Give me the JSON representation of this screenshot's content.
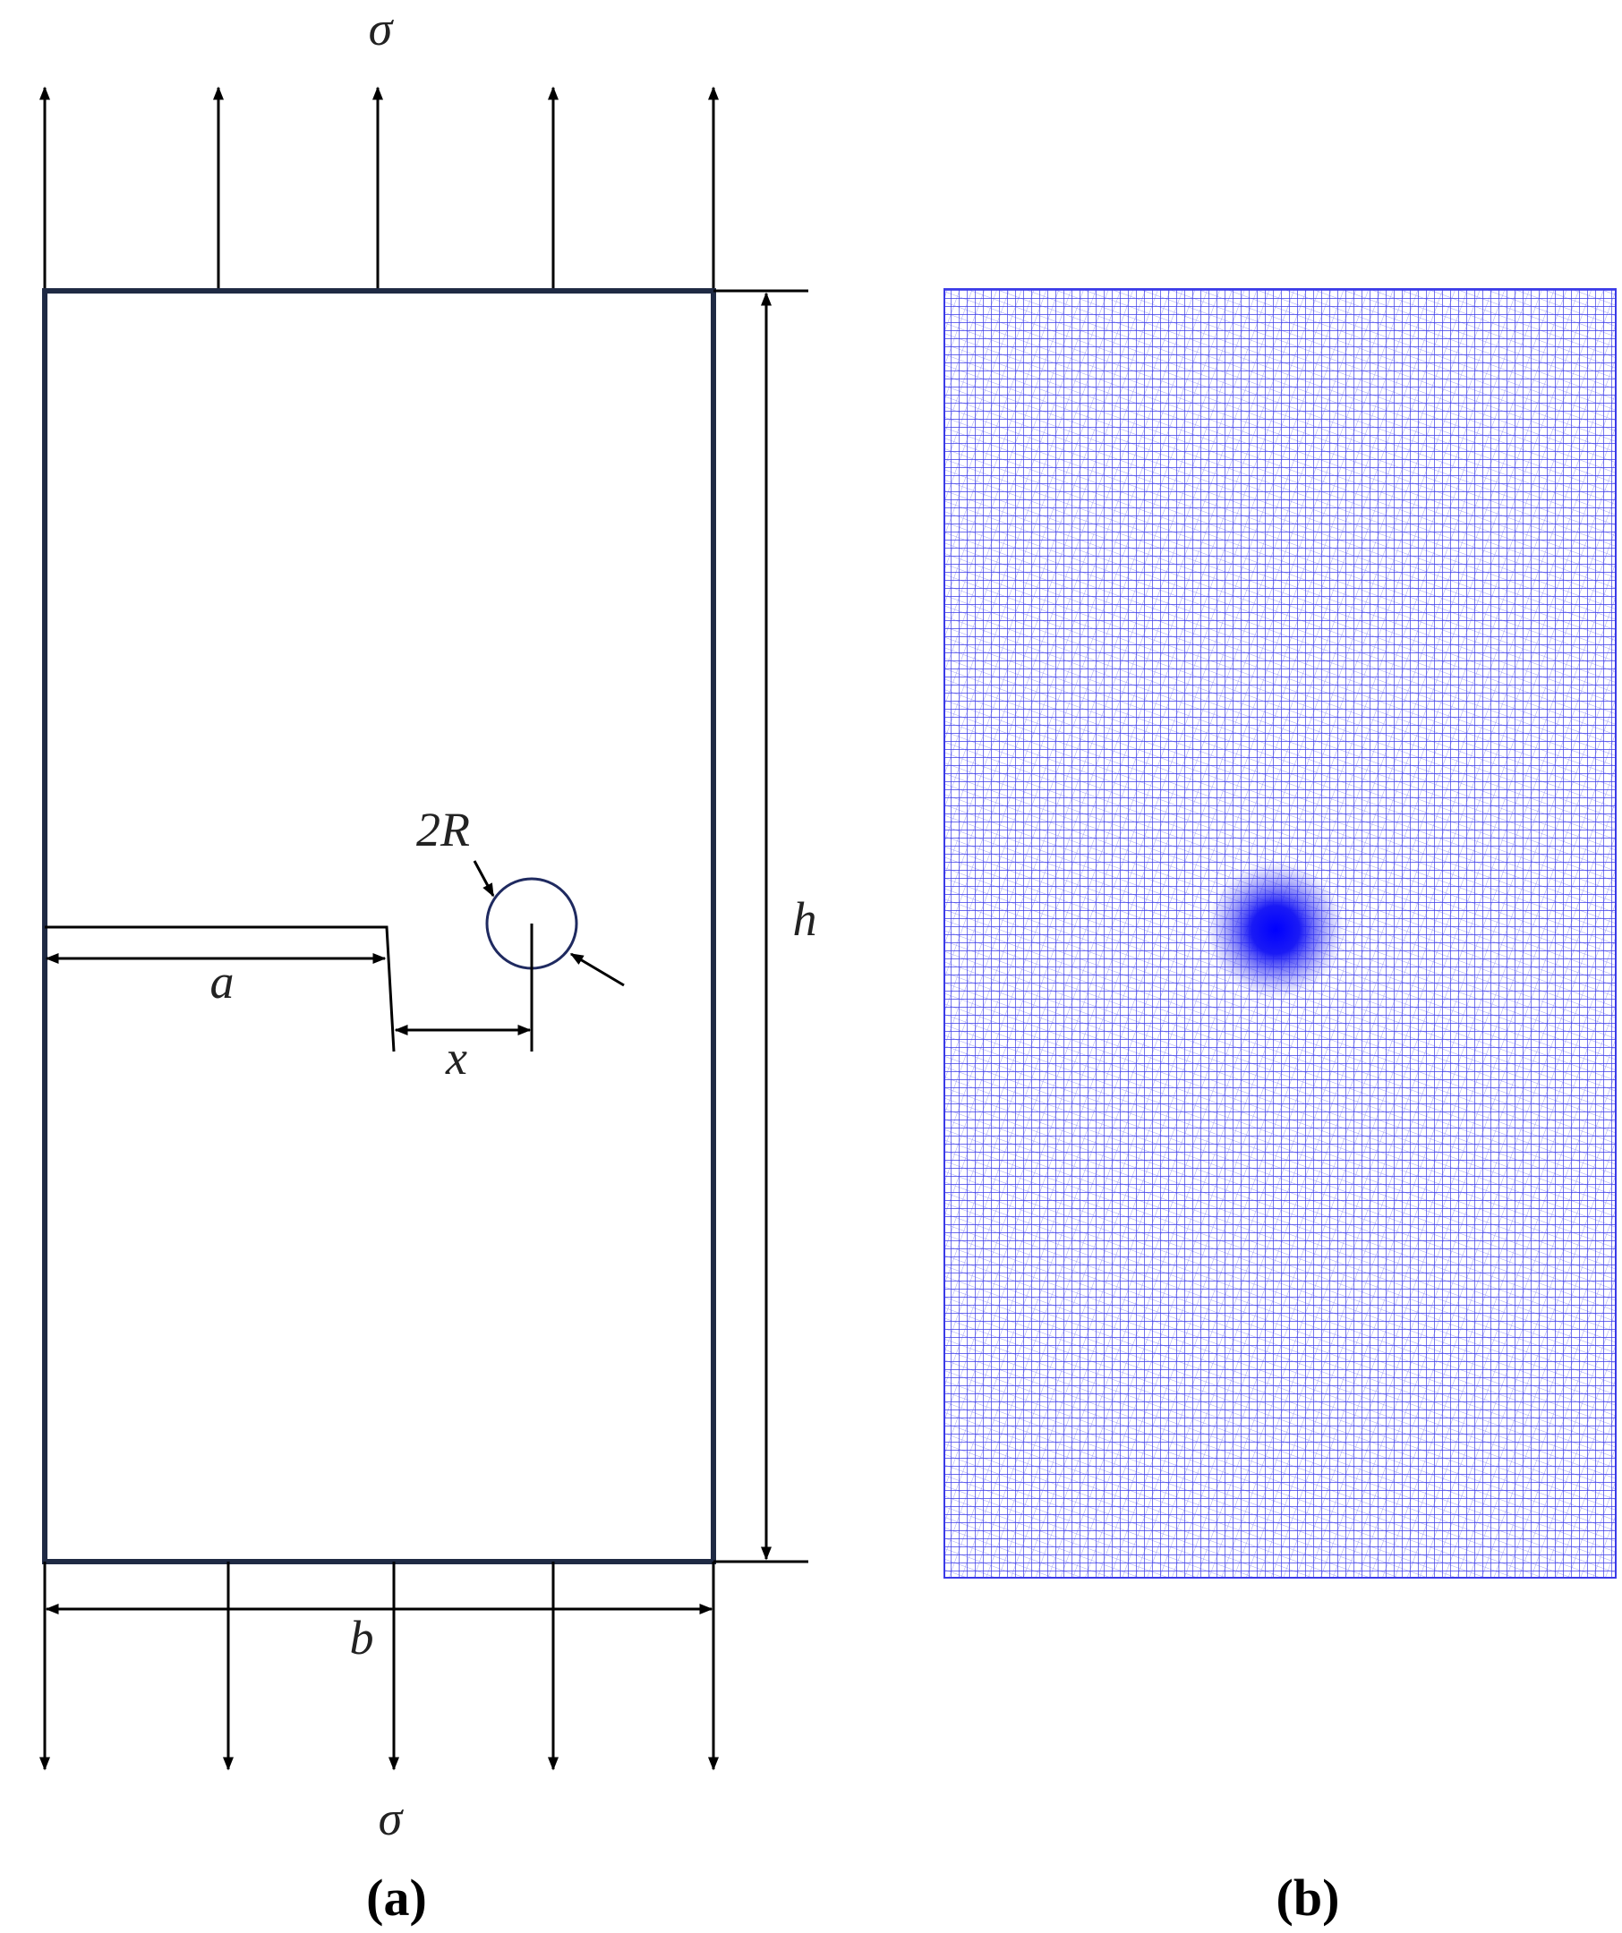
{
  "diagram": {
    "load_top": "σ",
    "load_bottom": "σ",
    "hole_label": "2R",
    "crack_label": "a",
    "distance_label": "x",
    "height_label": "h",
    "width_label": "b"
  },
  "captions": [
    "(a)",
    "(b)"
  ]
}
